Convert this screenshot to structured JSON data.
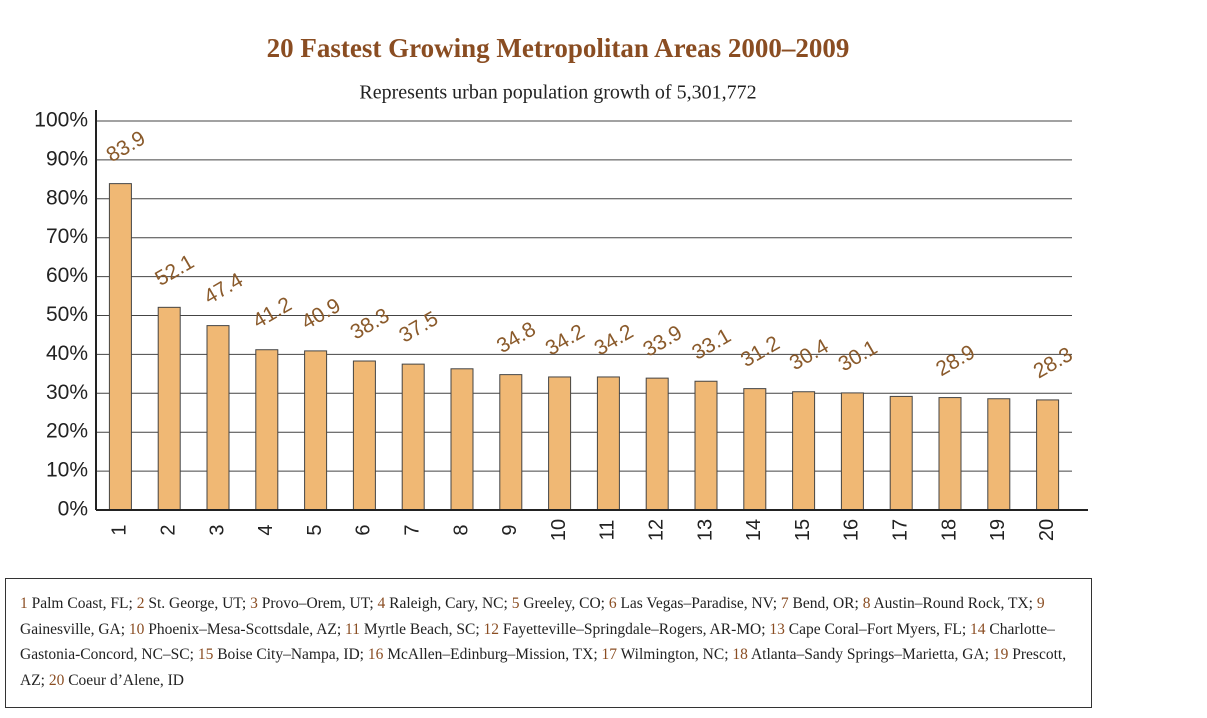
{
  "chart_data": {
    "type": "bar",
    "title": "20 Fastest Growing Metropolitan Areas 2000–2009",
    "subtitle": "Represents urban population growth of 5,301,772",
    "categories": [
      "1",
      "2",
      "3",
      "4",
      "5",
      "6",
      "7",
      "8",
      "9",
      "10",
      "11",
      "12",
      "13",
      "14",
      "15",
      "16",
      "17",
      "18",
      "19",
      "20"
    ],
    "values": [
      83.9,
      52.1,
      47.4,
      41.2,
      40.9,
      38.3,
      37.5,
      36.3,
      34.8,
      34.2,
      34.2,
      33.9,
      33.1,
      31.2,
      30.4,
      30.1,
      29.2,
      28.9,
      28.6,
      28.3
    ],
    "value_labels": [
      "83.9",
      "52.1",
      "47.4",
      "41.2",
      "40.9",
      "38.3",
      "37.5",
      null,
      "34.8",
      "34.2",
      "34.2",
      "33.9",
      "33.1",
      "31.2",
      "30.4",
      "30.1",
      null,
      "28.9",
      null,
      "28.3"
    ],
    "color": "#f0b874",
    "ylim": [
      0,
      100
    ],
    "yticks": [
      {
        "value": 0,
        "label": "0%"
      },
      {
        "value": 10,
        "label": "10%"
      },
      {
        "value": 20,
        "label": "20%"
      },
      {
        "value": 30,
        "label": "30%"
      },
      {
        "value": 40,
        "label": "40%"
      },
      {
        "value": 50,
        "label": "50%"
      },
      {
        "value": 60,
        "label": "60%"
      },
      {
        "value": 70,
        "label": "70%"
      },
      {
        "value": 80,
        "label": "80%"
      },
      {
        "value": 90,
        "label": "90%"
      },
      {
        "value": 100,
        "label": "100%"
      }
    ],
    "grid": true
  },
  "legend_items": [
    {
      "number": "1",
      "name": "Palm Coast, FL;"
    },
    {
      "number": "2",
      "name": "St. George, UT;"
    },
    {
      "number": "3",
      "name": "Provo–Orem, UT;"
    },
    {
      "number": "4",
      "name": "Raleigh, Cary, NC;"
    },
    {
      "number": "5",
      "name": "Greeley, CO;"
    },
    {
      "number": "6",
      "name": "Las Vegas–Paradise, NV;"
    },
    {
      "number": "7",
      "name": "Bend, OR;"
    },
    {
      "number": "8",
      "name": "Austin–Round Rock, TX;"
    },
    {
      "number": "9",
      "name": "Gainesville, GA;"
    },
    {
      "number": "10",
      "name": "Phoenix–Mesa-Scottsdale, AZ;"
    },
    {
      "number": "11",
      "name": "Myrtle Beach, SC;"
    },
    {
      "number": "12",
      "name": "Fayetteville–Springdale–Rogers, AR-MO;"
    },
    {
      "number": "13",
      "name": "Cape Coral–Fort Myers, FL;"
    },
    {
      "number": "14",
      "name": "Charlotte–Gastonia-Concord, NC–SC;"
    },
    {
      "number": "15",
      "name": "Boise City–Nampa, ID;"
    },
    {
      "number": "16",
      "name": "McAllen–Edinburg–Mission, TX;"
    },
    {
      "number": "17",
      "name": "Wilmington, NC;"
    },
    {
      "number": "18",
      "name": "Atlanta–Sandy Springs–Marietta, GA;"
    },
    {
      "number": "19",
      "name": "Prescott, AZ;"
    },
    {
      "number": "20",
      "name": "Coeur d’Alene, ID"
    }
  ]
}
